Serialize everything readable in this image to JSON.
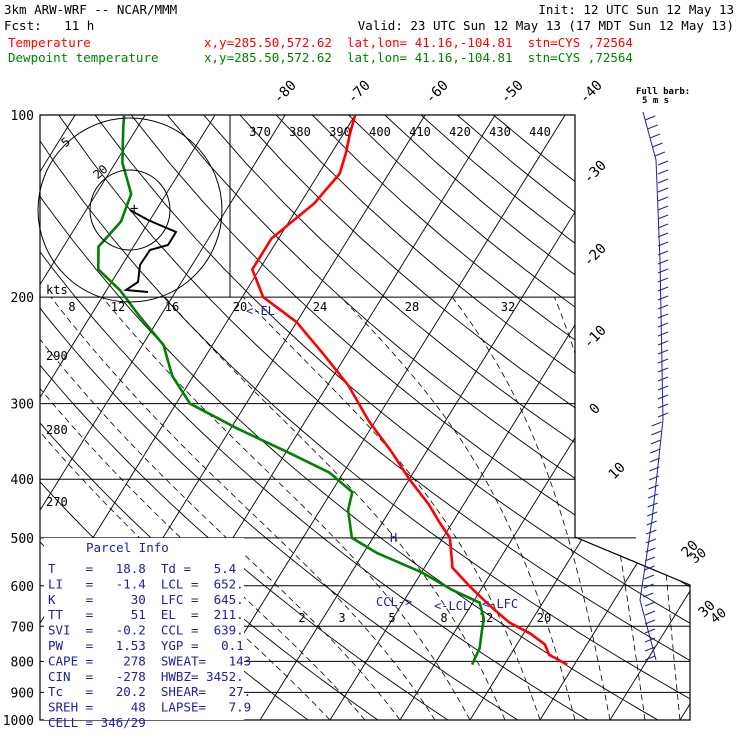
{
  "header": {
    "model": "3km ARW-WRF -- NCAR/MMM",
    "init": "Init: 12 UTC Sun 12 May 13",
    "fcst": "Fcst:   11 h",
    "valid": "Valid: 23 UTC Sun 12 May 13 (17 MDT Sun 12 May 13)",
    "temp_line": {
      "label": "Temperature",
      "loc": "x,y=285.50,572.62  lat,lon= 41.16,-104.81  stn=CYS ,72564",
      "color": "#ff0000"
    },
    "dew_line": {
      "label": "Dewpoint temperature",
      "loc": "x,y=285.50,572.62  lat,lon= 41.16,-104.81  stn=CYS ,72564",
      "color": "#008000"
    }
  },
  "chart_data": {
    "type": "line",
    "chart_type": "skew-T log-p",
    "y_axis": {
      "scale": "log",
      "range": [
        1000,
        100
      ],
      "ticks": [
        100,
        200,
        300,
        400,
        500,
        600,
        700,
        800,
        900,
        1000
      ]
    },
    "isotherm_labels": [
      -80,
      -70,
      -60,
      -50,
      -40,
      -30,
      -20,
      -10,
      0,
      10,
      20,
      30,
      40
    ],
    "isentrope_labels": [
      370,
      380,
      390,
      400,
      410,
      420,
      430,
      440
    ],
    "mixing_ratio_labels_upper": [
      8,
      12,
      16,
      20,
      24,
      28,
      32
    ],
    "mixing_ratio_labels_lower": [
      2,
      3,
      5,
      8,
      12,
      20
    ],
    "left_labels": [
      290,
      280,
      270
    ],
    "series": [
      {
        "name": "Temperature",
        "color": "#ff0000",
        "points": [
          [
            810,
            19
          ],
          [
            780,
            15.5
          ],
          [
            750,
            14
          ],
          [
            720,
            11
          ],
          [
            690,
            7
          ],
          [
            660,
            4
          ],
          [
            630,
            1
          ],
          [
            600,
            -2
          ],
          [
            560,
            -6
          ],
          [
            500,
            -9
          ],
          [
            470,
            -12
          ],
          [
            440,
            -15
          ],
          [
            400,
            -20
          ],
          [
            360,
            -25
          ],
          [
            320,
            -31
          ],
          [
            280,
            -37
          ],
          [
            250,
            -43
          ],
          [
            220,
            -50
          ],
          [
            200,
            -57
          ],
          [
            180,
            -61
          ],
          [
            160,
            -61
          ],
          [
            140,
            -58
          ],
          [
            125,
            -57
          ],
          [
            115,
            -58
          ],
          [
            108,
            -59
          ],
          [
            100,
            -60
          ]
        ]
      },
      {
        "name": "Dewpoint temperature",
        "color": "#008000",
        "points": [
          [
            810,
            5.4
          ],
          [
            760,
            5
          ],
          [
            720,
            4
          ],
          [
            680,
            3
          ],
          [
            640,
            1
          ],
          [
            610,
            -4
          ],
          [
            570,
            -10
          ],
          [
            530,
            -18
          ],
          [
            500,
            -23
          ],
          [
            450,
            -26
          ],
          [
            420,
            -27
          ],
          [
            390,
            -32
          ],
          [
            360,
            -40
          ],
          [
            330,
            -49
          ],
          [
            300,
            -58
          ],
          [
            270,
            -63
          ],
          [
            240,
            -67
          ],
          [
            215,
            -73
          ],
          [
            195,
            -78
          ],
          [
            180,
            -83
          ],
          [
            165,
            -85
          ],
          [
            150,
            -84
          ],
          [
            135,
            -85
          ],
          [
            120,
            -89
          ],
          [
            105,
            -92
          ],
          [
            100,
            -93
          ]
        ]
      }
    ],
    "annotations": {
      "el": "<-EL",
      "ccl": "CCL->",
      "lcl": "<-LCL",
      "lfc": "<-LFC",
      "h_marker": "H"
    }
  },
  "parcel_info": {
    "title": "Parcel Info",
    "rows": [
      "T    =   18.8  Td =   5.4",
      "LI   =   -1.4  LCL =  652.",
      "K    =     30  LFC =  645.",
      "TT   =     51  EL  =  211.",
      "SVI  =   -0.2  CCL =  639.",
      "PW   =   1.53  YGP =   0.1",
      "CAPE =    278  SWEAT=   143",
      "CIN  =   -278  HWBZ= 3452.",
      "Tc   =   20.2  SHEAR=   27.",
      "SREH =     48  LAPSE=   7.9",
      "CELL = 346/29"
    ]
  },
  "hodograph": {
    "kts_label": "kts",
    "ring_labels": [
      "5",
      "20"
    ],
    "center_marker": "+"
  },
  "wind_profile": {
    "header": "Full barb:",
    "unit": "5 m s",
    "speed_labels": [
      "30",
      "40"
    ]
  }
}
